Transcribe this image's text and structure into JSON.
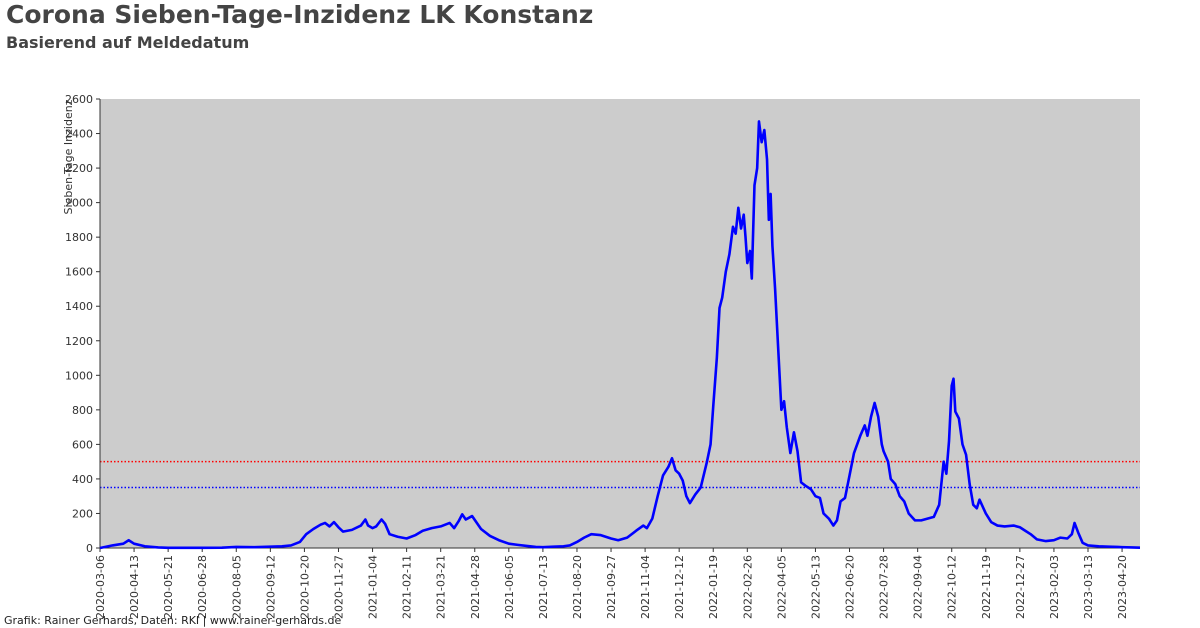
{
  "header": {
    "title": "Corona Sieben-Tage-Inzidenz LK Konstanz",
    "subtitle": "Basierend auf Meldedatum"
  },
  "footer": {
    "credit": "Grafik: Rainer Gerhards, Daten: RKI | www.rainer-gerhards.de"
  },
  "colors": {
    "plot_background": "#cccccc",
    "series": "#0000ff",
    "ref_high": "#ff0000",
    "ref_low": "#0000ff"
  },
  "chart_data": {
    "type": "line",
    "title": "Corona Sieben-Tage-Inzidenz LK Konstanz",
    "subtitle": "Basierend auf Meldedatum",
    "xlabel": "",
    "ylabel": "Sieben-Tage Inzidenz",
    "xlim": [
      "2020-03-06",
      "2023-05-10"
    ],
    "ylim": [
      0,
      2600
    ],
    "yticks": [
      0,
      200,
      400,
      600,
      800,
      1000,
      1200,
      1400,
      1600,
      1800,
      2000,
      2200,
      2400,
      2600
    ],
    "xticks": [
      "2020-03-06",
      "2020-04-13",
      "2020-05-21",
      "2020-06-28",
      "2020-08-05",
      "2020-09-12",
      "2020-10-20",
      "2020-11-27",
      "2021-01-04",
      "2021-02-11",
      "2021-03-21",
      "2021-04-28",
      "2021-06-05",
      "2021-07-13",
      "2021-08-20",
      "2021-09-27",
      "2021-11-04",
      "2021-12-12",
      "2022-01-19",
      "2022-02-26",
      "2022-04-05",
      "2022-05-13",
      "2022-06-20",
      "2022-07-28",
      "2022-09-04",
      "2022-10-12",
      "2022-11-19",
      "2022-12-27",
      "2023-02-03",
      "2023-03-13",
      "2023-04-20"
    ],
    "grid": false,
    "reference_lines": [
      {
        "y": 500,
        "color": "#ff0000",
        "style": "dotted"
      },
      {
        "y": 350,
        "color": "#0000ff",
        "style": "dotted"
      }
    ],
    "series": [
      {
        "color": "#0000ff",
        "points": [
          [
            "2020-03-06",
            0
          ],
          [
            "2020-03-20",
            15
          ],
          [
            "2020-04-01",
            25
          ],
          [
            "2020-04-07",
            45
          ],
          [
            "2020-04-13",
            25
          ],
          [
            "2020-04-25",
            10
          ],
          [
            "2020-05-10",
            3
          ],
          [
            "2020-05-21",
            1
          ],
          [
            "2020-06-28",
            1
          ],
          [
            "2020-07-20",
            2
          ],
          [
            "2020-08-05",
            6
          ],
          [
            "2020-08-25",
            5
          ],
          [
            "2020-09-12",
            8
          ],
          [
            "2020-09-25",
            10
          ],
          [
            "2020-10-05",
            15
          ],
          [
            "2020-10-15",
            35
          ],
          [
            "2020-10-22",
            80
          ],
          [
            "2020-10-30",
            110
          ],
          [
            "2020-11-07",
            135
          ],
          [
            "2020-11-12",
            145
          ],
          [
            "2020-11-17",
            125
          ],
          [
            "2020-11-22",
            150
          ],
          [
            "2020-11-27",
            120
          ],
          [
            "2020-12-02",
            95
          ],
          [
            "2020-12-12",
            105
          ],
          [
            "2020-12-22",
            130
          ],
          [
            "2020-12-27",
            165
          ],
          [
            "2020-12-30",
            130
          ],
          [
            "2021-01-04",
            115
          ],
          [
            "2021-01-08",
            125
          ],
          [
            "2021-01-14",
            165
          ],
          [
            "2021-01-18",
            140
          ],
          [
            "2021-01-23",
            80
          ],
          [
            "2021-02-01",
            65
          ],
          [
            "2021-02-11",
            55
          ],
          [
            "2021-02-21",
            75
          ],
          [
            "2021-03-01",
            100
          ],
          [
            "2021-03-11",
            115
          ],
          [
            "2021-03-21",
            125
          ],
          [
            "2021-03-31",
            145
          ],
          [
            "2021-04-05",
            115
          ],
          [
            "2021-04-10",
            155
          ],
          [
            "2021-04-14",
            195
          ],
          [
            "2021-04-18",
            165
          ],
          [
            "2021-04-25",
            185
          ],
          [
            "2021-05-05",
            110
          ],
          [
            "2021-05-15",
            70
          ],
          [
            "2021-05-25",
            45
          ],
          [
            "2021-06-05",
            25
          ],
          [
            "2021-06-15",
            18
          ],
          [
            "2021-06-25",
            12
          ],
          [
            "2021-07-05",
            6
          ],
          [
            "2021-07-13",
            5
          ],
          [
            "2021-07-25",
            8
          ],
          [
            "2021-08-05",
            10
          ],
          [
            "2021-08-12",
            15
          ],
          [
            "2021-08-20",
            35
          ],
          [
            "2021-08-28",
            60
          ],
          [
            "2021-09-05",
            80
          ],
          [
            "2021-09-15",
            75
          ],
          [
            "2021-09-27",
            55
          ],
          [
            "2021-10-05",
            45
          ],
          [
            "2021-10-15",
            60
          ],
          [
            "2021-10-25",
            100
          ],
          [
            "2021-11-02",
            130
          ],
          [
            "2021-11-06",
            115
          ],
          [
            "2021-11-12",
            170
          ],
          [
            "2021-11-18",
            300
          ],
          [
            "2021-11-24",
            420
          ],
          [
            "2021-11-30",
            470
          ],
          [
            "2021-12-04",
            520
          ],
          [
            "2021-12-08",
            450
          ],
          [
            "2021-12-12",
            430
          ],
          [
            "2021-12-16",
            390
          ],
          [
            "2021-12-20",
            300
          ],
          [
            "2021-12-24",
            260
          ],
          [
            "2021-12-30",
            310
          ],
          [
            "2022-01-05",
            350
          ],
          [
            "2022-01-12",
            500
          ],
          [
            "2022-01-16",
            600
          ],
          [
            "2022-01-19",
            820
          ],
          [
            "2022-01-23",
            1100
          ],
          [
            "2022-01-26",
            1390
          ],
          [
            "2022-01-29",
            1450
          ],
          [
            "2022-02-02",
            1600
          ],
          [
            "2022-02-06",
            1700
          ],
          [
            "2022-02-10",
            1860
          ],
          [
            "2022-02-13",
            1820
          ],
          [
            "2022-02-16",
            1970
          ],
          [
            "2022-02-19",
            1850
          ],
          [
            "2022-02-22",
            1930
          ],
          [
            "2022-02-24",
            1800
          ],
          [
            "2022-02-26",
            1650
          ],
          [
            "2022-03-01",
            1720
          ],
          [
            "2022-03-03",
            1560
          ],
          [
            "2022-03-06",
            2100
          ],
          [
            "2022-03-09",
            2200
          ],
          [
            "2022-03-11",
            2470
          ],
          [
            "2022-03-14",
            2350
          ],
          [
            "2022-03-17",
            2420
          ],
          [
            "2022-03-20",
            2250
          ],
          [
            "2022-03-22",
            1900
          ],
          [
            "2022-03-24",
            2050
          ],
          [
            "2022-03-26",
            1750
          ],
          [
            "2022-03-29",
            1500
          ],
          [
            "2022-04-01",
            1200
          ],
          [
            "2022-04-03",
            1000
          ],
          [
            "2022-04-05",
            800
          ],
          [
            "2022-04-08",
            850
          ],
          [
            "2022-04-11",
            700
          ],
          [
            "2022-04-15",
            550
          ],
          [
            "2022-04-19",
            670
          ],
          [
            "2022-04-23",
            560
          ],
          [
            "2022-04-27",
            380
          ],
          [
            "2022-05-02",
            360
          ],
          [
            "2022-05-08",
            340
          ],
          [
            "2022-05-13",
            300
          ],
          [
            "2022-05-18",
            290
          ],
          [
            "2022-05-22",
            200
          ],
          [
            "2022-05-28",
            170
          ],
          [
            "2022-06-02",
            130
          ],
          [
            "2022-06-06",
            160
          ],
          [
            "2022-06-10",
            270
          ],
          [
            "2022-06-15",
            290
          ],
          [
            "2022-06-20",
            420
          ],
          [
            "2022-06-25",
            550
          ],
          [
            "2022-07-02",
            650
          ],
          [
            "2022-07-07",
            710
          ],
          [
            "2022-07-10",
            650
          ],
          [
            "2022-07-14",
            760
          ],
          [
            "2022-07-18",
            840
          ],
          [
            "2022-07-22",
            760
          ],
          [
            "2022-07-26",
            600
          ],
          [
            "2022-07-28",
            560
          ],
          [
            "2022-08-02",
            500
          ],
          [
            "2022-08-05",
            400
          ],
          [
            "2022-08-10",
            370
          ],
          [
            "2022-08-15",
            300
          ],
          [
            "2022-08-20",
            270
          ],
          [
            "2022-08-25",
            200
          ],
          [
            "2022-09-01",
            160
          ],
          [
            "2022-09-08",
            160
          ],
          [
            "2022-09-15",
            170
          ],
          [
            "2022-09-22",
            180
          ],
          [
            "2022-09-28",
            250
          ],
          [
            "2022-10-03",
            500
          ],
          [
            "2022-10-06",
            430
          ],
          [
            "2022-10-09",
            620
          ],
          [
            "2022-10-12",
            940
          ],
          [
            "2022-10-14",
            980
          ],
          [
            "2022-10-16",
            790
          ],
          [
            "2022-10-20",
            750
          ],
          [
            "2022-10-24",
            600
          ],
          [
            "2022-10-28",
            540
          ],
          [
            "2022-11-01",
            370
          ],
          [
            "2022-11-05",
            250
          ],
          [
            "2022-11-09",
            230
          ],
          [
            "2022-11-12",
            280
          ],
          [
            "2022-11-19",
            200
          ],
          [
            "2022-11-25",
            150
          ],
          [
            "2022-12-02",
            130
          ],
          [
            "2022-12-10",
            125
          ],
          [
            "2022-12-20",
            130
          ],
          [
            "2022-12-27",
            120
          ],
          [
            "2023-01-02",
            100
          ],
          [
            "2023-01-08",
            80
          ],
          [
            "2023-01-15",
            50
          ],
          [
            "2023-01-25",
            40
          ],
          [
            "2023-02-03",
            45
          ],
          [
            "2023-02-10",
            60
          ],
          [
            "2023-02-18",
            55
          ],
          [
            "2023-02-23",
            80
          ],
          [
            "2023-02-26",
            145
          ],
          [
            "2023-03-02",
            90
          ],
          [
            "2023-03-07",
            30
          ],
          [
            "2023-03-13",
            15
          ],
          [
            "2023-03-25",
            10
          ],
          [
            "2023-04-05",
            8
          ],
          [
            "2023-04-15",
            6
          ],
          [
            "2023-04-20",
            5
          ],
          [
            "2023-05-01",
            3
          ],
          [
            "2023-05-10",
            2
          ]
        ]
      }
    ]
  }
}
